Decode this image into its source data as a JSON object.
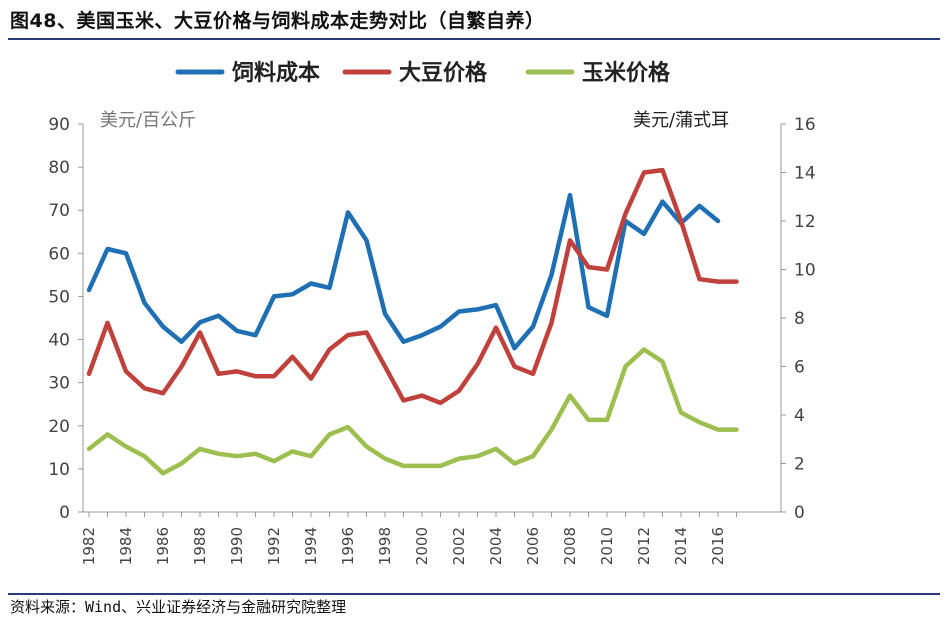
{
  "title": "图48、美国玉米、大豆价格与饲料成本走势对比（自繁自养）",
  "source": "资料来源：Wind、兴业证券经济与金融研究院整理",
  "chart_data": {
    "type": "line",
    "x": [
      1982,
      1983,
      1984,
      1985,
      1986,
      1987,
      1988,
      1989,
      1990,
      1991,
      1992,
      1993,
      1994,
      1995,
      1996,
      1997,
      1998,
      1999,
      2000,
      2001,
      2002,
      2003,
      2004,
      2005,
      2006,
      2007,
      2008,
      2009,
      2010,
      2011,
      2012,
      2013,
      2014,
      2015,
      2016,
      2017
    ],
    "x_ticks": [
      "1982",
      "1984",
      "1986",
      "1988",
      "1990",
      "1992",
      "1994",
      "1996",
      "1998",
      "2000",
      "2002",
      "2004",
      "2006",
      "2008",
      "2010",
      "2012",
      "2014",
      "2016"
    ],
    "y_left_label": "美元/百公斤",
    "y_right_label": "美元/蒲式耳",
    "y_left_ticks": [
      "0",
      "10",
      "20",
      "30",
      "40",
      "50",
      "60",
      "70",
      "80",
      "90"
    ],
    "y_right_ticks": [
      "0",
      "2",
      "4",
      "6",
      "8",
      "10",
      "12",
      "14",
      "16"
    ],
    "y_left_range": [
      0,
      90
    ],
    "y_right_range": [
      0,
      16
    ],
    "grid": false,
    "legend_position": "top",
    "series": [
      {
        "name": "饲料成本",
        "axis": "left",
        "color": "#1f6fb4",
        "values": [
          51.5,
          61,
          60,
          48.5,
          43,
          39.5,
          44,
          45.5,
          42,
          41,
          50,
          50.5,
          53,
          52,
          69.5,
          63,
          46,
          39.5,
          41,
          43,
          46.5,
          47,
          48,
          38,
          43,
          55,
          73.5,
          47.5,
          45.5,
          67.5,
          64.5,
          72,
          67,
          71,
          67.5,
          null
        ]
      },
      {
        "name": "大豆价格",
        "axis": "right",
        "color": "#c0413b",
        "values": [
          5.7,
          7.8,
          5.8,
          5.1,
          4.9,
          6.0,
          7.4,
          5.7,
          5.8,
          5.6,
          5.6,
          6.4,
          5.5,
          6.7,
          7.3,
          7.4,
          6.0,
          4.6,
          4.8,
          4.5,
          5.0,
          6.1,
          7.6,
          6.0,
          5.7,
          7.8,
          11.2,
          10.1,
          10.0,
          12.3,
          14.0,
          14.1,
          12.0,
          9.6,
          9.5,
          9.5
        ]
      },
      {
        "name": "玉米价格",
        "axis": "right",
        "color": "#9dbf4f",
        "values": [
          2.6,
          3.2,
          2.7,
          2.3,
          1.6,
          2.0,
          2.6,
          2.4,
          2.3,
          2.4,
          2.1,
          2.5,
          2.3,
          3.2,
          3.5,
          2.7,
          2.2,
          1.9,
          1.9,
          1.9,
          2.2,
          2.3,
          2.6,
          2.0,
          2.3,
          3.4,
          4.8,
          3.8,
          3.8,
          6.0,
          6.7,
          6.2,
          4.1,
          3.7,
          3.4,
          3.4
        ]
      }
    ]
  }
}
